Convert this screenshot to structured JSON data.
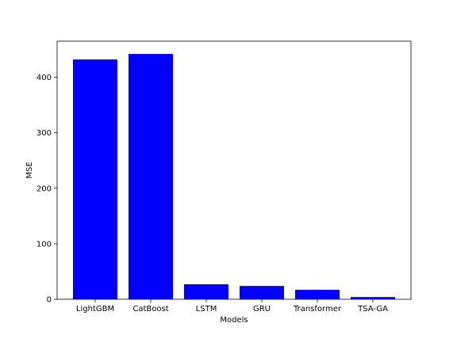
{
  "chart_data": {
    "type": "bar",
    "title": "",
    "xlabel": "Models",
    "ylabel": "MSE",
    "categories": [
      "LightGBM",
      "CatBoost",
      "LSTM",
      "GRU",
      "Transformer",
      "TSA-GA"
    ],
    "values": [
      432,
      442,
      27,
      24,
      17,
      4
    ],
    "ylim": [
      0,
      465
    ],
    "yticks": [
      0,
      100,
      200,
      300,
      400
    ],
    "grid": false,
    "bar_color": "#0000ff"
  }
}
